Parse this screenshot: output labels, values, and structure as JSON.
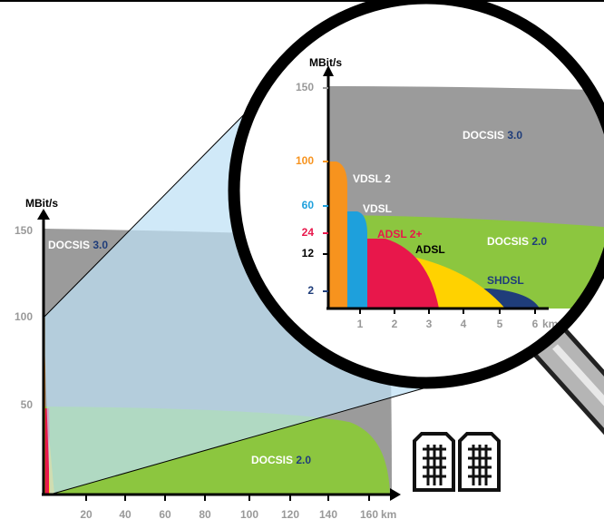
{
  "main_chart": {
    "y_axis_label": "MBit/s",
    "y_ticks": [
      150,
      100,
      50
    ],
    "x_ticks": [
      20,
      40,
      60,
      80,
      100,
      120,
      140,
      160
    ],
    "x_unit": "km",
    "docsis_3": {
      "name": "DOCSIS",
      "version": "3.0"
    },
    "docsis_2": {
      "name": "DOCSIS",
      "version": "2.0"
    }
  },
  "zoom_chart": {
    "y_axis_label": "MBit/s",
    "y_ticks": [
      150,
      100,
      60,
      24,
      12,
      2
    ],
    "x_ticks": [
      1,
      2,
      3,
      4,
      5,
      6
    ],
    "x_unit": "km",
    "docsis_3": {
      "name": "DOCSIS",
      "version": "3.0"
    },
    "docsis_2": {
      "name": "DOCSIS",
      "version": "2.0"
    },
    "vdsl2": "VDSL 2",
    "vdsl": "VDSL",
    "adsl2plus": "ADSL 2+",
    "adsl": "ADSL",
    "shdsl": "SHDSL"
  }
}
